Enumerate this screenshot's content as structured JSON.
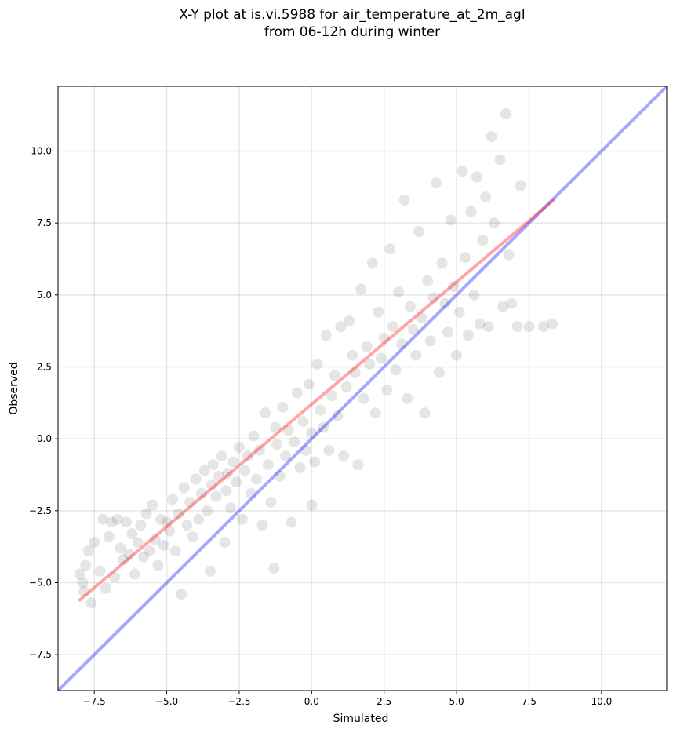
{
  "chart_data": {
    "type": "scatter",
    "title_line1": "X-Y plot at is.vi.5988 for air_temperature_at_2m_agl",
    "title_line2": "from 06-12h during winter",
    "xlabel": "Simulated",
    "ylabel": "Observed",
    "xlim": [
      -8.75,
      12.25
    ],
    "ylim": [
      -8.75,
      12.25
    ],
    "xticks": [
      -7.5,
      -5.0,
      -2.5,
      0.0,
      2.5,
      5.0,
      7.5,
      10.0
    ],
    "yticks": [
      -7.5,
      -5.0,
      -2.5,
      0.0,
      2.5,
      5.0,
      7.5,
      10.0
    ],
    "xtick_labels": [
      "−7.5",
      "−5.0",
      "−2.5",
      "0.0",
      "2.5",
      "5.0",
      "7.5",
      "10.0"
    ],
    "ytick_labels": [
      "−7.5",
      "−5.0",
      "−2.5",
      "0.0",
      "2.5",
      "5.0",
      "7.5",
      "10.0"
    ],
    "grid": true,
    "marker_color": "#000000",
    "marker_alpha": 0.1,
    "one_to_one_line": {
      "x": [
        -8.75,
        12.25
      ],
      "y": [
        -8.75,
        12.25
      ],
      "color": "#0000ff",
      "alpha": 0.35
    },
    "regression_line": {
      "x": [
        -8.0,
        8.35
      ],
      "y": [
        -5.6,
        8.3
      ],
      "color": "#ff0000",
      "alpha": 0.35
    },
    "points": [
      [
        -8.0,
        -4.7
      ],
      [
        -7.9,
        -5.0
      ],
      [
        -7.85,
        -5.3
      ],
      [
        -7.8,
        -4.4
      ],
      [
        -7.7,
        -3.9
      ],
      [
        -7.6,
        -5.7
      ],
      [
        -7.5,
        -3.6
      ],
      [
        -7.3,
        -4.6
      ],
      [
        -7.2,
        -2.8
      ],
      [
        -7.1,
        -5.2
      ],
      [
        -7.0,
        -3.4
      ],
      [
        -6.9,
        -2.9
      ],
      [
        -6.8,
        -4.8
      ],
      [
        -6.7,
        -2.8
      ],
      [
        -6.6,
        -3.8
      ],
      [
        -6.5,
        -4.2
      ],
      [
        -6.4,
        -2.9
      ],
      [
        -6.3,
        -4.0
      ],
      [
        -6.2,
        -3.3
      ],
      [
        -6.1,
        -4.7
      ],
      [
        -6.0,
        -3.6
      ],
      [
        -5.9,
        -3.0
      ],
      [
        -5.8,
        -4.1
      ],
      [
        -5.7,
        -2.6
      ],
      [
        -5.6,
        -3.9
      ],
      [
        -5.5,
        -2.3
      ],
      [
        -5.4,
        -3.5
      ],
      [
        -5.3,
        -4.4
      ],
      [
        -5.2,
        -2.8
      ],
      [
        -5.1,
        -3.7
      ],
      [
        -5.0,
        -2.9
      ],
      [
        -4.9,
        -3.2
      ],
      [
        -4.8,
        -2.1
      ],
      [
        -4.7,
        -3.9
      ],
      [
        -4.6,
        -2.6
      ],
      [
        -4.5,
        -5.4
      ],
      [
        -4.4,
        -1.7
      ],
      [
        -4.3,
        -3.0
      ],
      [
        -4.2,
        -2.2
      ],
      [
        -4.1,
        -3.4
      ],
      [
        -4.0,
        -1.4
      ],
      [
        -3.9,
        -2.8
      ],
      [
        -3.8,
        -1.9
      ],
      [
        -3.7,
        -1.1
      ],
      [
        -3.6,
        -2.5
      ],
      [
        -3.5,
        -4.6
      ],
      [
        -3.45,
        -1.6
      ],
      [
        -3.4,
        -0.9
      ],
      [
        -3.3,
        -2.0
      ],
      [
        -3.2,
        -1.3
      ],
      [
        -3.1,
        -0.6
      ],
      [
        -3.0,
        -3.6
      ],
      [
        -2.95,
        -1.8
      ],
      [
        -2.9,
        -1.2
      ],
      [
        -2.8,
        -2.4
      ],
      [
        -2.7,
        -0.8
      ],
      [
        -2.6,
        -1.5
      ],
      [
        -2.5,
        -0.3
      ],
      [
        -2.4,
        -2.8
      ],
      [
        -2.3,
        -1.1
      ],
      [
        -2.2,
        -0.6
      ],
      [
        -2.1,
        -1.9
      ],
      [
        -2.0,
        0.1
      ],
      [
        -1.9,
        -1.4
      ],
      [
        -1.8,
        -0.4
      ],
      [
        -1.7,
        -3.0
      ],
      [
        -1.6,
        0.9
      ],
      [
        -1.5,
        -0.9
      ],
      [
        -1.4,
        -2.2
      ],
      [
        -1.3,
        -4.5
      ],
      [
        -1.25,
        0.4
      ],
      [
        -1.2,
        -0.2
      ],
      [
        -1.1,
        -1.3
      ],
      [
        -1.0,
        1.1
      ],
      [
        -0.9,
        -0.6
      ],
      [
        -0.8,
        0.3
      ],
      [
        -0.7,
        -2.9
      ],
      [
        -0.6,
        -0.1
      ],
      [
        -0.5,
        1.6
      ],
      [
        -0.4,
        -1.0
      ],
      [
        -0.3,
        0.6
      ],
      [
        -0.2,
        -0.4
      ],
      [
        -0.1,
        1.9
      ],
      [
        0.0,
        -2.3
      ],
      [
        0.0,
        0.2
      ],
      [
        0.1,
        -0.8
      ],
      [
        0.2,
        2.6
      ],
      [
        0.3,
        1.0
      ],
      [
        0.4,
        0.4
      ],
      [
        0.5,
        3.6
      ],
      [
        0.6,
        -0.4
      ],
      [
        0.7,
        1.5
      ],
      [
        0.8,
        2.2
      ],
      [
        0.9,
        0.8
      ],
      [
        1.0,
        3.9
      ],
      [
        1.1,
        -0.6
      ],
      [
        1.2,
        1.8
      ],
      [
        1.3,
        4.1
      ],
      [
        1.4,
        2.9
      ],
      [
        1.5,
        2.3
      ],
      [
        1.6,
        -0.9
      ],
      [
        1.7,
        5.2
      ],
      [
        1.8,
        1.4
      ],
      [
        1.9,
        3.2
      ],
      [
        2.0,
        2.6
      ],
      [
        2.1,
        6.1
      ],
      [
        2.2,
        0.9
      ],
      [
        2.3,
        4.4
      ],
      [
        2.4,
        2.8
      ],
      [
        2.5,
        3.5
      ],
      [
        2.6,
        1.7
      ],
      [
        2.7,
        6.6
      ],
      [
        2.8,
        3.9
      ],
      [
        2.9,
        2.4
      ],
      [
        3.0,
        5.1
      ],
      [
        3.1,
        3.3
      ],
      [
        3.2,
        8.3
      ],
      [
        3.3,
        1.4
      ],
      [
        3.4,
        4.6
      ],
      [
        3.5,
        3.8
      ],
      [
        3.6,
        2.9
      ],
      [
        3.7,
        7.2
      ],
      [
        3.8,
        4.2
      ],
      [
        3.9,
        0.9
      ],
      [
        4.0,
        5.5
      ],
      [
        4.1,
        3.4
      ],
      [
        4.2,
        4.9
      ],
      [
        4.3,
        8.9
      ],
      [
        4.4,
        2.3
      ],
      [
        4.5,
        6.1
      ],
      [
        4.6,
        4.7
      ],
      [
        4.7,
        3.7
      ],
      [
        4.8,
        7.6
      ],
      [
        4.9,
        5.3
      ],
      [
        5.0,
        2.9
      ],
      [
        5.1,
        4.4
      ],
      [
        5.2,
        9.3
      ],
      [
        5.3,
        6.3
      ],
      [
        5.4,
        3.6
      ],
      [
        5.5,
        7.9
      ],
      [
        5.6,
        5.0
      ],
      [
        5.7,
        9.1
      ],
      [
        5.8,
        4.0
      ],
      [
        5.9,
        6.9
      ],
      [
        6.0,
        8.4
      ],
      [
        6.1,
        3.9
      ],
      [
        6.2,
        10.5
      ],
      [
        6.3,
        7.5
      ],
      [
        6.5,
        9.7
      ],
      [
        6.6,
        4.6
      ],
      [
        6.7,
        11.3
      ],
      [
        6.8,
        6.4
      ],
      [
        6.9,
        4.7
      ],
      [
        7.1,
        3.9
      ],
      [
        7.2,
        8.8
      ],
      [
        7.5,
        3.9
      ],
      [
        8.0,
        3.9
      ],
      [
        8.3,
        4.0
      ]
    ]
  }
}
